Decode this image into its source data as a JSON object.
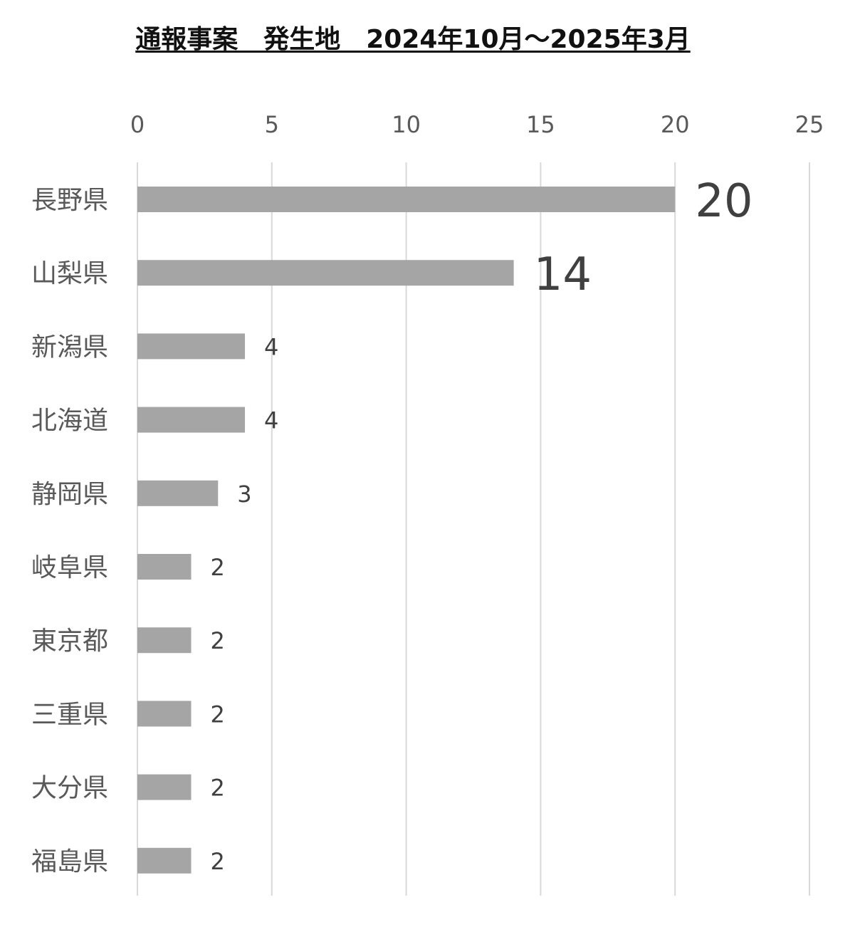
{
  "chart_data": {
    "type": "bar",
    "orientation": "horizontal",
    "title": "通報事案　発生地　2024年10月～2025年3月",
    "categories": [
      "長野県",
      "山梨県",
      "新潟県",
      "北海道",
      "静岡県",
      "岐阜県",
      "東京都",
      "三重県",
      "大分県",
      "福島県"
    ],
    "values": [
      20,
      14,
      4,
      4,
      3,
      2,
      2,
      2,
      2,
      2
    ],
    "xlim": [
      0,
      25
    ],
    "x_ticks": [
      "0",
      "5",
      "10",
      "15",
      "20",
      "25"
    ],
    "x_axis_position": "top",
    "grid": true,
    "legend": "none",
    "data_labels": true,
    "xlabel": "",
    "ylabel": "",
    "colors": {
      "bar": "#a5a5a5",
      "grid": "#d9d9d9",
      "tick_text": "#595959",
      "data_label_text": "#404040"
    }
  }
}
